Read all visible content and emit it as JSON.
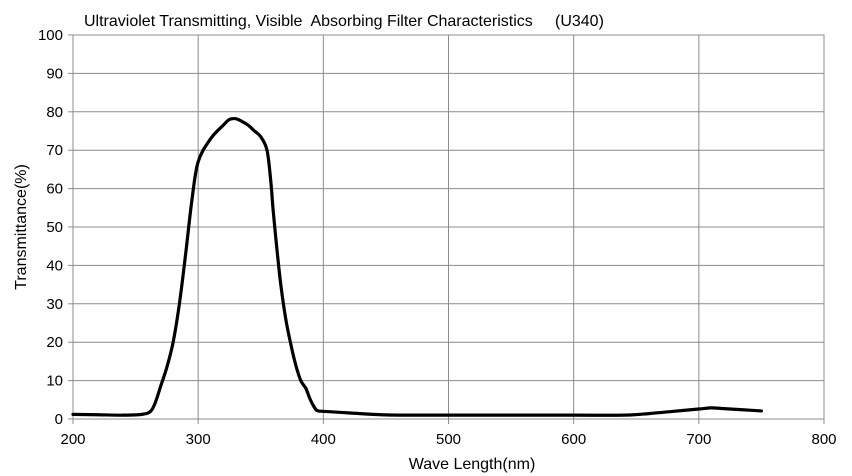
{
  "chart_data": {
    "type": "line",
    "title": "Ultraviolet Transmitting, Visible  Absorbing Filter Characteristics     (U340)",
    "xlabel": "Wave Length(nm)",
    "ylabel": "Transmittance(%)",
    "xlim": [
      200,
      800
    ],
    "ylim": [
      0,
      100
    ],
    "xticks": [
      200,
      300,
      400,
      500,
      600,
      700,
      800
    ],
    "yticks": [
      0,
      10,
      20,
      30,
      40,
      50,
      60,
      70,
      80,
      90,
      100
    ],
    "grid": true,
    "legend": "none",
    "series": [
      {
        "color": "#000000",
        "x": [
          200,
          220,
          240,
          255,
          262,
          266,
          270,
          275,
          280,
          285,
          290,
          295,
          300,
          310,
          320,
          325,
          330,
          335,
          340,
          345,
          350,
          355,
          358,
          360,
          363,
          366,
          370,
          374,
          378,
          382,
          386,
          389,
          392,
          395,
          400,
          420,
          440,
          460,
          500,
          550,
          600,
          640,
          660,
          680,
          700,
          710,
          720,
          735,
          750
        ],
        "y": [
          1.2,
          1.1,
          1.0,
          1.2,
          2.0,
          4.5,
          8.5,
          13.5,
          20.0,
          30.0,
          43.0,
          57.0,
          67.0,
          73.0,
          76.5,
          78.0,
          78.2,
          77.5,
          76.5,
          75.0,
          73.5,
          70.0,
          62.0,
          54.0,
          44.0,
          35.0,
          26.0,
          19.5,
          14.0,
          10.0,
          8.0,
          5.5,
          3.5,
          2.2,
          2.0,
          1.6,
          1.2,
          1.0,
          1.0,
          1.0,
          1.0,
          1.0,
          1.4,
          2.0,
          2.6,
          2.9,
          2.7,
          2.4,
          2.1
        ]
      }
    ]
  }
}
